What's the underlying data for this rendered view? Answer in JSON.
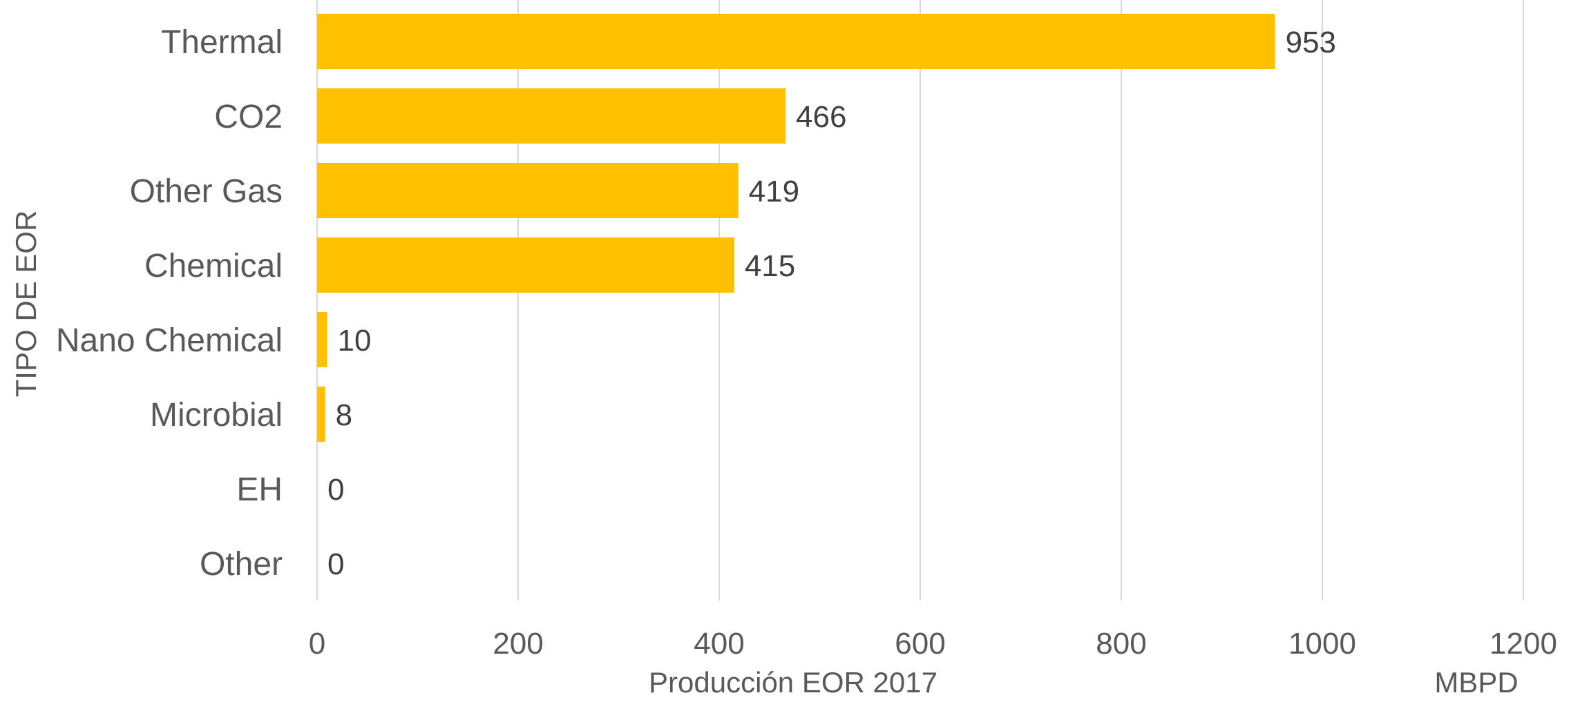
{
  "chart_data": {
    "type": "bar",
    "orientation": "horizontal",
    "categories": [
      "Thermal",
      "CO2",
      "Other Gas",
      "Chemical",
      "Nano Chemical",
      "Microbial",
      "EH",
      "Other"
    ],
    "values": [
      953,
      466,
      419,
      415,
      10,
      8,
      0,
      0
    ],
    "title": "",
    "xlabel": "Producción EOR 2017",
    "ylabel": "TIPO DE EOR",
    "unit": "MBPD",
    "xlim": [
      0,
      1200
    ],
    "xticks": [
      "0",
      "200",
      "400",
      "600",
      "800",
      "1000",
      "1200"
    ],
    "grid": true,
    "legend": "none",
    "bar_color": "#ffc000",
    "grid_color": "#d9d9d9",
    "text_color": "#595959"
  }
}
